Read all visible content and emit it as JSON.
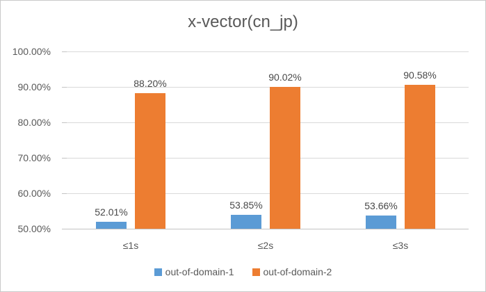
{
  "chart_data": {
    "type": "bar",
    "title": "x-vector(cn_jp)",
    "categories": [
      "≤1s",
      "≤2s",
      "≤3s"
    ],
    "series": [
      {
        "name": "out-of-domain-1",
        "color": "#5B9BD5",
        "values": [
          52.01,
          53.85,
          53.66
        ],
        "labels": [
          "52.01%",
          "53.85%",
          "53.66%"
        ]
      },
      {
        "name": "out-of-domain-2",
        "color": "#ED7D31",
        "values": [
          88.2,
          90.02,
          90.58
        ],
        "labels": [
          "88.20%",
          "90.02%",
          "90.58%"
        ]
      }
    ],
    "ylim": [
      50,
      100
    ],
    "ytick_step": 10,
    "ytick_labels": [
      "100.00%",
      "90.00%",
      "80.00%",
      "70.00%",
      "60.00%",
      "50.00%"
    ],
    "grid": true,
    "legend_position": "bottom",
    "colors": {
      "text": "#595959",
      "gridline": "#D9D9D9",
      "axis": "#C3C3C3",
      "border": "#C9C9C9"
    }
  }
}
